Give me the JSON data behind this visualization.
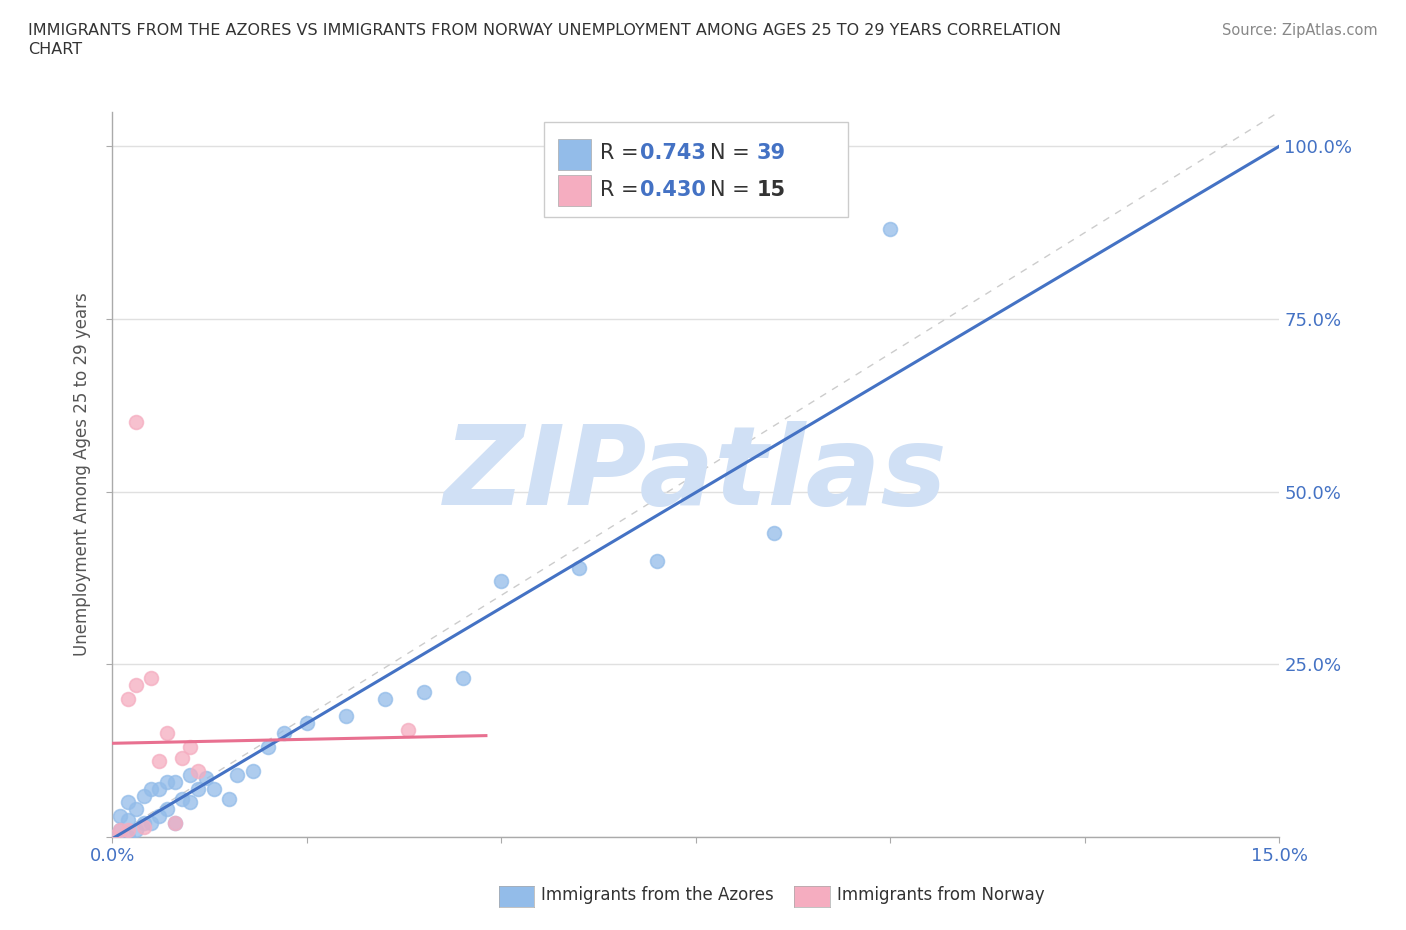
{
  "title_line1": "IMMIGRANTS FROM THE AZORES VS IMMIGRANTS FROM NORWAY UNEMPLOYMENT AMONG AGES 25 TO 29 YEARS CORRELATION",
  "title_line2": "CHART",
  "source_text": "Source: ZipAtlas.com",
  "ylabel": "Unemployment Among Ages 25 to 29 years",
  "xlim": [
    0.0,
    0.15
  ],
  "ylim": [
    0.0,
    1.05
  ],
  "blue_R": 0.743,
  "blue_N": 39,
  "pink_R": 0.43,
  "pink_N": 15,
  "blue_color": "#93bce9",
  "pink_color": "#f5adc0",
  "blue_line_color": "#4472c4",
  "pink_line_color": "#e87090",
  "ref_line_color": "#cccccc",
  "watermark": "ZIPatlas",
  "watermark_color": "#d0e0f5",
  "background_color": "#ffffff",
  "grid_color": "#e0e0e0",
  "tick_label_color": "#4472c4",
  "ylabel_color": "#555555",
  "title_color": "#333333",
  "source_color": "#888888",
  "legend_text_color": "#333333",
  "legend_value_color": "#4472c4",
  "blue_scatter_x": [
    0.0,
    0.001,
    0.001,
    0.002,
    0.002,
    0.002,
    0.003,
    0.003,
    0.004,
    0.004,
    0.005,
    0.005,
    0.006,
    0.006,
    0.007,
    0.007,
    0.008,
    0.008,
    0.009,
    0.01,
    0.01,
    0.011,
    0.012,
    0.013,
    0.015,
    0.016,
    0.018,
    0.02,
    0.022,
    0.025,
    0.03,
    0.035,
    0.04,
    0.045,
    0.05,
    0.06,
    0.07,
    0.085,
    0.1
  ],
  "blue_scatter_y": [
    0.0,
    0.01,
    0.03,
    0.0,
    0.025,
    0.05,
    0.01,
    0.04,
    0.02,
    0.06,
    0.02,
    0.07,
    0.03,
    0.07,
    0.04,
    0.08,
    0.02,
    0.08,
    0.055,
    0.05,
    0.09,
    0.07,
    0.085,
    0.07,
    0.055,
    0.09,
    0.095,
    0.13,
    0.15,
    0.165,
    0.175,
    0.2,
    0.21,
    0.23,
    0.37,
    0.39,
    0.4,
    0.44,
    0.88
  ],
  "pink_scatter_x": [
    0.0,
    0.001,
    0.002,
    0.003,
    0.004,
    0.005,
    0.006,
    0.007,
    0.008,
    0.009,
    0.01,
    0.011,
    0.003,
    0.002,
    0.038
  ],
  "pink_scatter_y": [
    0.0,
    0.01,
    0.01,
    0.22,
    0.015,
    0.23,
    0.11,
    0.15,
    0.02,
    0.115,
    0.13,
    0.095,
    0.6,
    0.2,
    0.155
  ],
  "blue_line_x": [
    0.0,
    0.15
  ],
  "pink_line_x_max": 0.048,
  "yticks": [
    0.0,
    0.25,
    0.5,
    0.75,
    1.0
  ],
  "ytick_labels": [
    "",
    "25.0%",
    "50.0%",
    "75.0%",
    "100.0%"
  ],
  "xticks": [
    0.0,
    0.025,
    0.05,
    0.075,
    0.1,
    0.125,
    0.15
  ],
  "xtick_labels": [
    "0.0%",
    "",
    "",
    "",
    "",
    "",
    "15.0%"
  ]
}
